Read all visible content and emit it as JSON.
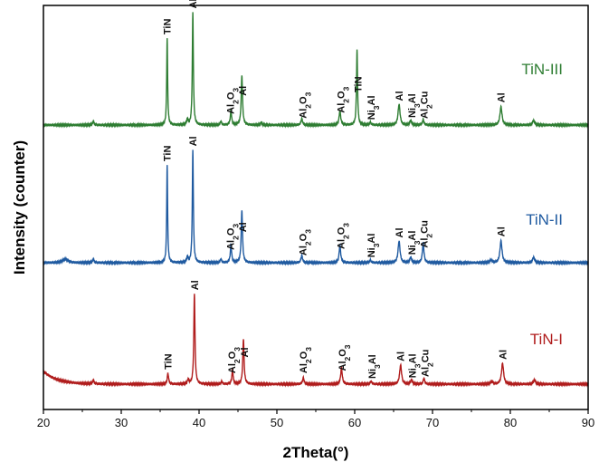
{
  "chart_data": {
    "type": "line",
    "xlabel": "2Theta(°)",
    "ylabel": "Intensity (counter)",
    "xlim": [
      20,
      90
    ],
    "xticks": [
      20,
      30,
      40,
      50,
      60,
      70,
      80,
      90
    ],
    "ytick_labels": false,
    "grid": false,
    "series": [
      {
        "name": "TiN-III",
        "color": "#2e7d32",
        "baseline": 100,
        "rise": [],
        "peaks": [
          {
            "x": 26.4,
            "h": 4,
            "w": 0.12
          },
          {
            "x": 35.9,
            "h": 96,
            "w": 0.07
          },
          {
            "x": 38.5,
            "h": 6,
            "w": 0.1
          },
          {
            "x": 39.2,
            "h": 124,
            "w": 0.08
          },
          {
            "x": 42.8,
            "h": 4,
            "w": 0.1
          },
          {
            "x": 44.1,
            "h": 16,
            "w": 0.1
          },
          {
            "x": 45.5,
            "h": 55,
            "w": 0.1
          },
          {
            "x": 48.0,
            "h": 3,
            "w": 0.1
          },
          {
            "x": 53.2,
            "h": 7,
            "w": 0.12
          },
          {
            "x": 58.1,
            "h": 16,
            "w": 0.12
          },
          {
            "x": 60.3,
            "h": 83,
            "w": 0.08
          },
          {
            "x": 62.0,
            "h": 3,
            "w": 0.12
          },
          {
            "x": 65.7,
            "h": 23,
            "w": 0.15
          },
          {
            "x": 67.2,
            "h": 5,
            "w": 0.12
          },
          {
            "x": 68.8,
            "h": 6,
            "w": 0.12
          },
          {
            "x": 78.8,
            "h": 20,
            "w": 0.16
          },
          {
            "x": 83.0,
            "h": 5,
            "w": 0.15
          }
        ],
        "annotations": [
          {
            "x": 35.9,
            "text": "TiN"
          },
          {
            "x": 39.2,
            "text": "Al"
          },
          {
            "x": 44.0,
            "text": "Al2O3"
          },
          {
            "x": 45.6,
            "text": "Al"
          },
          {
            "x": 53.3,
            "text": "Al2O3"
          },
          {
            "x": 58.2,
            "text": "Al2O3"
          },
          {
            "x": 60.4,
            "text": "TiN"
          },
          {
            "x": 62.1,
            "text": "Ni3Al"
          },
          {
            "x": 65.7,
            "text": "Al"
          },
          {
            "x": 67.3,
            "text": "Ni3Al"
          },
          {
            "x": 68.9,
            "text": "Al2Cu"
          },
          {
            "x": 78.8,
            "text": "Al"
          }
        ]
      },
      {
        "name": "TiN-II",
        "color": "#1f5aa0",
        "baseline": 100,
        "rise": [],
        "peaks": [
          {
            "x": 22.8,
            "h": 4,
            "w": 0.4
          },
          {
            "x": 26.4,
            "h": 4,
            "w": 0.12
          },
          {
            "x": 35.9,
            "h": 108,
            "w": 0.07
          },
          {
            "x": 38.5,
            "h": 6,
            "w": 0.1
          },
          {
            "x": 39.2,
            "h": 124,
            "w": 0.08
          },
          {
            "x": 42.8,
            "h": 4,
            "w": 0.1
          },
          {
            "x": 44.1,
            "h": 20,
            "w": 0.1
          },
          {
            "x": 45.5,
            "h": 58,
            "w": 0.1
          },
          {
            "x": 53.2,
            "h": 8,
            "w": 0.12
          },
          {
            "x": 58.1,
            "h": 19,
            "w": 0.12
          },
          {
            "x": 62.0,
            "h": 3,
            "w": 0.12
          },
          {
            "x": 65.7,
            "h": 24,
            "w": 0.15
          },
          {
            "x": 67.2,
            "h": 6,
            "w": 0.12
          },
          {
            "x": 68.8,
            "h": 22,
            "w": 0.12
          },
          {
            "x": 77.5,
            "h": 3,
            "w": 0.15
          },
          {
            "x": 78.8,
            "h": 24,
            "w": 0.16
          },
          {
            "x": 83.0,
            "h": 6,
            "w": 0.15
          }
        ],
        "annotations": [
          {
            "x": 35.9,
            "text": "TiN"
          },
          {
            "x": 39.2,
            "text": "Al"
          },
          {
            "x": 44.0,
            "text": "Al2O3"
          },
          {
            "x": 45.6,
            "text": "Al"
          },
          {
            "x": 53.3,
            "text": "Al2O3"
          },
          {
            "x": 58.2,
            "text": "Al2O3"
          },
          {
            "x": 62.1,
            "text": "Ni3Al"
          },
          {
            "x": 65.7,
            "text": "Al"
          },
          {
            "x": 67.3,
            "text": "Ni3Al"
          },
          {
            "x": 68.9,
            "text": "Al2Cu"
          },
          {
            "x": 78.8,
            "text": "Al"
          }
        ]
      },
      {
        "name": "TiN-I",
        "color": "#b01c1c",
        "baseline": 100,
        "rise": [
          {
            "x": 20,
            "amp": 14,
            "decay": 1.8
          }
        ],
        "peaks": [
          {
            "x": 26.4,
            "h": 4,
            "w": 0.12
          },
          {
            "x": 36.0,
            "h": 12,
            "w": 0.1
          },
          {
            "x": 38.6,
            "h": 5,
            "w": 0.1
          },
          {
            "x": 39.4,
            "h": 100,
            "w": 0.09
          },
          {
            "x": 42.9,
            "h": 3,
            "w": 0.1
          },
          {
            "x": 44.3,
            "h": 15,
            "w": 0.1
          },
          {
            "x": 45.7,
            "h": 50,
            "w": 0.1
          },
          {
            "x": 53.4,
            "h": 7,
            "w": 0.12
          },
          {
            "x": 58.3,
            "h": 18,
            "w": 0.12
          },
          {
            "x": 62.1,
            "h": 3,
            "w": 0.12
          },
          {
            "x": 65.9,
            "h": 21,
            "w": 0.15
          },
          {
            "x": 67.3,
            "h": 5,
            "w": 0.12
          },
          {
            "x": 68.9,
            "h": 6,
            "w": 0.12
          },
          {
            "x": 77.6,
            "h": 3,
            "w": 0.15
          },
          {
            "x": 79.0,
            "h": 23,
            "w": 0.16
          },
          {
            "x": 83.1,
            "h": 5,
            "w": 0.15
          }
        ],
        "annotations": [
          {
            "x": 36.0,
            "text": "TiN"
          },
          {
            "x": 39.4,
            "text": "Al"
          },
          {
            "x": 44.2,
            "text": "Al2O3"
          },
          {
            "x": 45.8,
            "text": "Al"
          },
          {
            "x": 53.4,
            "text": "Al2O3"
          },
          {
            "x": 58.4,
            "text": "Al2O3"
          },
          {
            "x": 62.2,
            "text": "Ni3Al"
          },
          {
            "x": 65.9,
            "text": "Al"
          },
          {
            "x": 67.4,
            "text": "Ni3Al"
          },
          {
            "x": 69.0,
            "text": "Al2Cu"
          },
          {
            "x": 79.0,
            "text": "Al"
          }
        ]
      }
    ]
  }
}
